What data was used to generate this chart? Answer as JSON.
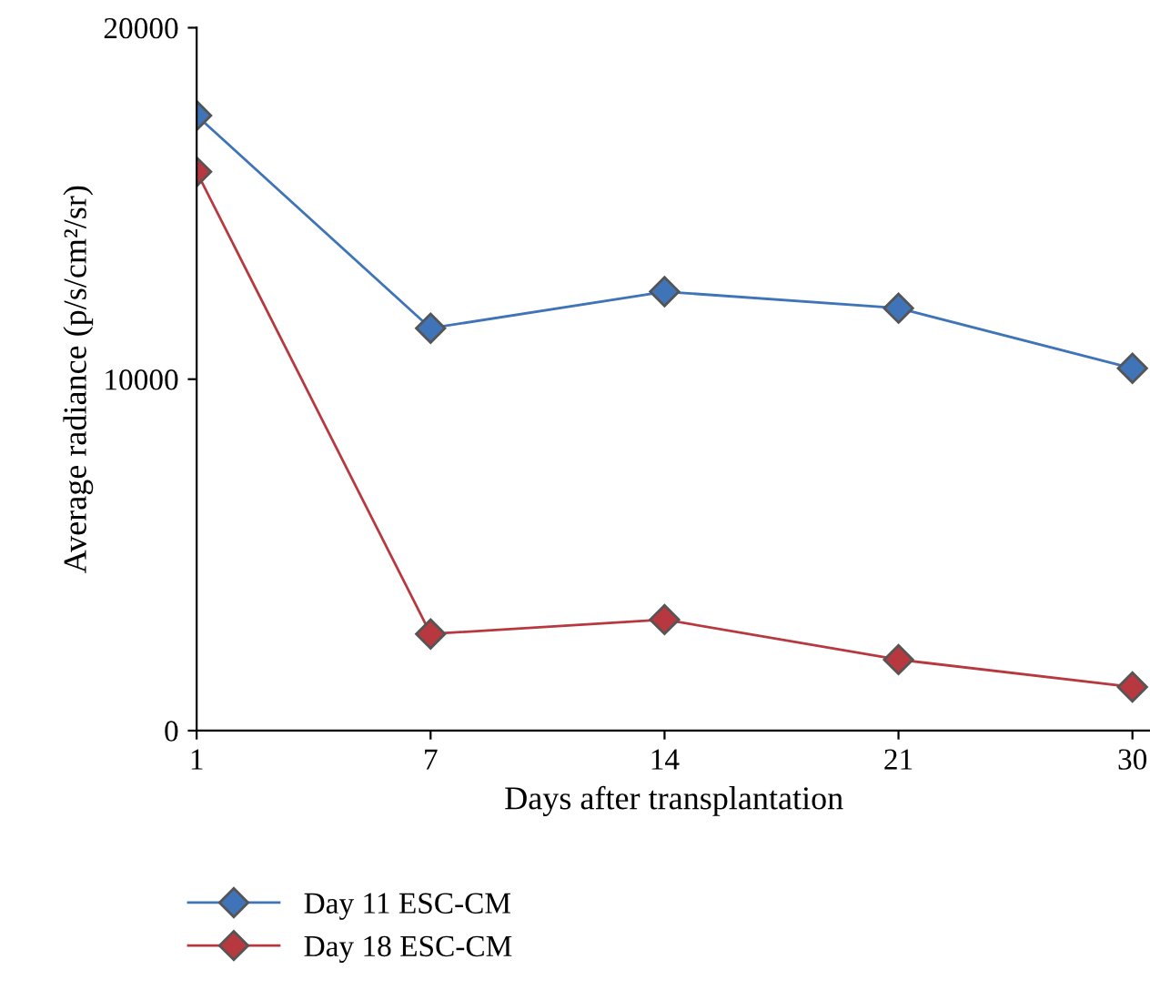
{
  "chart_data": {
    "type": "line",
    "xlabel": "Days after transplantation",
    "ylabel": "Average radiance (p/s/cm²/sr)",
    "categories": [
      "1",
      "7",
      "14",
      "21",
      "30"
    ],
    "series": [
      {
        "name": "Day 11 ESC-CM",
        "color": "#3f74b8",
        "values": [
          17500,
          11450,
          12490,
          12020,
          10310
        ]
      },
      {
        "name": "Day 18 ESC-CM",
        "color": "#b8383f",
        "values": [
          15900,
          2750,
          3160,
          2020,
          1240
        ]
      }
    ],
    "ylim": [
      0,
      20000
    ],
    "yticks": [
      0,
      10000,
      20000
    ],
    "grid": false,
    "legend": "bottom",
    "marker": "diamond",
    "line_style": "solid"
  }
}
